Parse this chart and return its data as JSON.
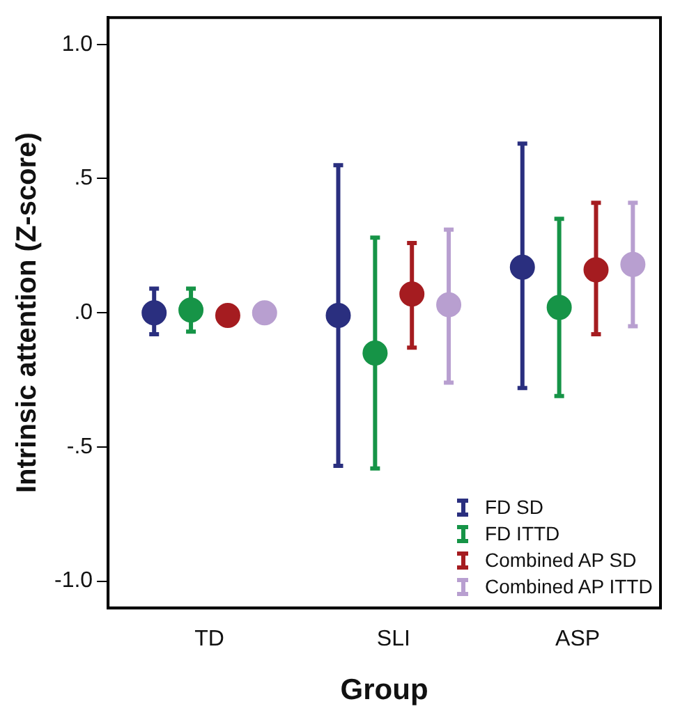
{
  "chart_data": {
    "type": "scatter",
    "xlabel": "Group",
    "ylabel": "Intrinsic attention (Z-score)",
    "categories": [
      "TD",
      "SLI",
      "ASP"
    ],
    "ylim": [
      -1.1,
      1.1
    ],
    "yticks": [
      {
        "value": -1,
        "label": "-1.0"
      },
      {
        "value": -0.5,
        "label": "-.5"
      },
      {
        "value": 0,
        "label": ".0"
      },
      {
        "value": 0.5,
        "label": ".5"
      },
      {
        "value": 1,
        "label": "1.0"
      }
    ],
    "grid": false,
    "legend": "bottom right",
    "marker": "circle",
    "series": [
      {
        "name": "FD SD",
        "color": "#2a2f7f",
        "values": [
          0.0,
          -0.01,
          0.17
        ],
        "errors": [
          [
            -0.08,
            0.09
          ],
          [
            -0.57,
            0.55
          ],
          [
            -0.28,
            0.63
          ]
        ]
      },
      {
        "name": "FD ITTD",
        "color": "#169447",
        "values": [
          0.01,
          -0.15,
          0.02
        ],
        "errors": [
          [
            -0.07,
            0.09
          ],
          [
            -0.58,
            0.28
          ],
          [
            -0.31,
            0.35
          ]
        ]
      },
      {
        "name": "Combined AP SD",
        "color": "#a51c20",
        "values": [
          -0.01,
          0.07,
          0.16
        ],
        "errors": [
          null,
          [
            -0.13,
            0.26
          ],
          [
            -0.08,
            0.41
          ]
        ]
      },
      {
        "name": "Combined AP ITTD",
        "color": "#b89fd0",
        "values": [
          0.0,
          0.03,
          0.18
        ],
        "errors": [
          null,
          [
            -0.26,
            0.31
          ],
          [
            -0.05,
            0.41
          ]
        ]
      }
    ]
  }
}
